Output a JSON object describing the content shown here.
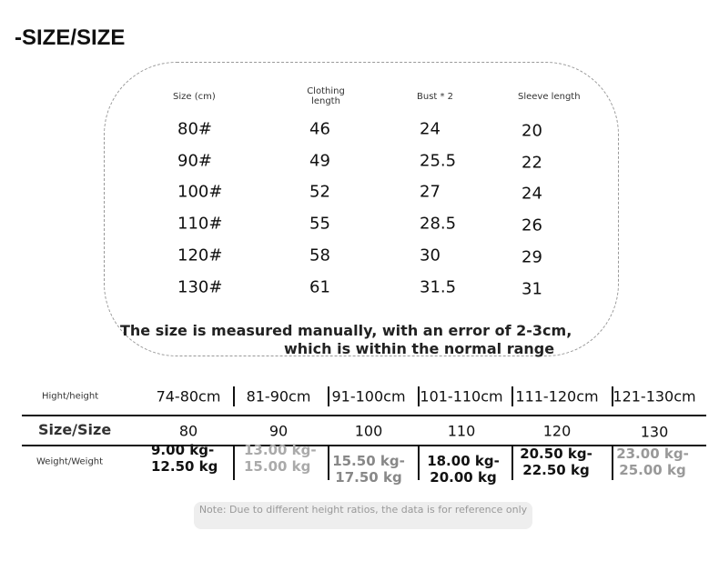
{
  "title": "-SIZE/SIZE",
  "size_chart": {
    "headers": [
      "Size (cm)",
      "Clothing length",
      "Bust * 2",
      "Sleeve length"
    ],
    "rows": [
      [
        "80#",
        "46",
        "24",
        "20"
      ],
      [
        "90#",
        "49",
        "25.5",
        "22"
      ],
      [
        "100#",
        "52",
        "27",
        "24"
      ],
      [
        "110#",
        "55",
        "28.5",
        "26"
      ],
      [
        "120#",
        "58",
        "30",
        "29"
      ],
      [
        "130#",
        "61",
        "31.5",
        "31"
      ]
    ],
    "note_line1": "The size is measured manually, with an error of 2-3cm,",
    "note_line2": "which is within the normal range"
  },
  "fit_table": {
    "height_label": "Hight/height",
    "heights": [
      "74-80cm",
      "81-90cm",
      "91-100cm",
      "101-110cm",
      "111-120cm",
      "121-130cm"
    ],
    "size_label": "Size/Size",
    "sizes": [
      "80",
      "90",
      "100",
      "110",
      "120",
      "130"
    ],
    "weight_label": "Weight/Weight",
    "weights": [
      "9.00 kg-12.50 kg",
      "13.00 kg-15.00 kg",
      "15.50 kg-17.50 kg",
      "18.00 kg-20.00 kg",
      "20.50 kg-22.50 kg",
      "23.00 kg-25.00 kg"
    ],
    "weight_colors": [
      "#111111",
      "#aaaaaa",
      "#888888",
      "#111111",
      "#111111",
      "#999999"
    ]
  },
  "note": "Note: Due to different height ratios, the data is for reference only"
}
